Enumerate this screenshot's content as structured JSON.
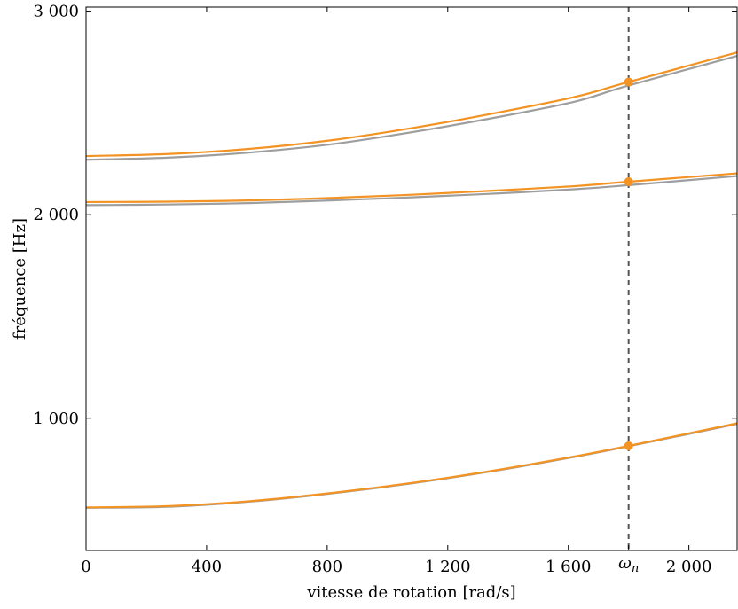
{
  "chart_data": {
    "type": "line",
    "title": "",
    "xlabel": "vitesse de rotation [rad/s]",
    "ylabel": "fréquence [Hz]",
    "xlim": [
      0,
      2160
    ],
    "ylim": [
      350,
      3020
    ],
    "x_ticks": [
      {
        "value": 0,
        "label": "0"
      },
      {
        "value": 400,
        "label": "400"
      },
      {
        "value": 800,
        "label": "800"
      },
      {
        "value": 1200,
        "label": "1 200"
      },
      {
        "value": 1600,
        "label": "1 600"
      },
      {
        "value": 2000,
        "label": "2 000"
      }
    ],
    "y_ticks": [
      {
        "value": 1000,
        "label": "1 000"
      },
      {
        "value": 2000,
        "label": "2 000"
      },
      {
        "value": 3000,
        "label": "3 000"
      }
    ],
    "marker_line": {
      "x": 1800,
      "label": "ω",
      "subscript": "n",
      "style": "dashed",
      "color": "#555555"
    },
    "grid": false,
    "x": [
      0,
      270,
      540,
      810,
      1080,
      1350,
      1620,
      1800,
      2160
    ],
    "series": [
      {
        "color": "#9e9e9e",
        "values": [
          560,
          565,
          590,
          630,
          680,
          740,
          810,
          862,
          972
        ]
      },
      {
        "color": "#f39323",
        "values": [
          562,
          568,
          592,
          632,
          682,
          742,
          812,
          864,
          975
        ]
      },
      {
        "color": "#9e9e9e",
        "values": [
          2047,
          2050,
          2057,
          2070,
          2085,
          2103,
          2125,
          2145,
          2190
        ]
      },
      {
        "color": "#f39323",
        "values": [
          2062,
          2064,
          2070,
          2082,
          2098,
          2118,
          2140,
          2162,
          2203
        ]
      },
      {
        "color": "#9e9e9e",
        "values": [
          2270,
          2280,
          2305,
          2345,
          2405,
          2475,
          2555,
          2635,
          2780
        ]
      },
      {
        "color": "#f39323",
        "values": [
          2288,
          2298,
          2323,
          2365,
          2425,
          2497,
          2578,
          2652,
          2797
        ]
      }
    ],
    "points": [
      {
        "x": 1800,
        "y": 864,
        "color": "#f39323"
      },
      {
        "x": 1800,
        "y": 2162,
        "color": "#f39323"
      },
      {
        "x": 1800,
        "y": 2652,
        "color": "#f39323"
      }
    ]
  }
}
